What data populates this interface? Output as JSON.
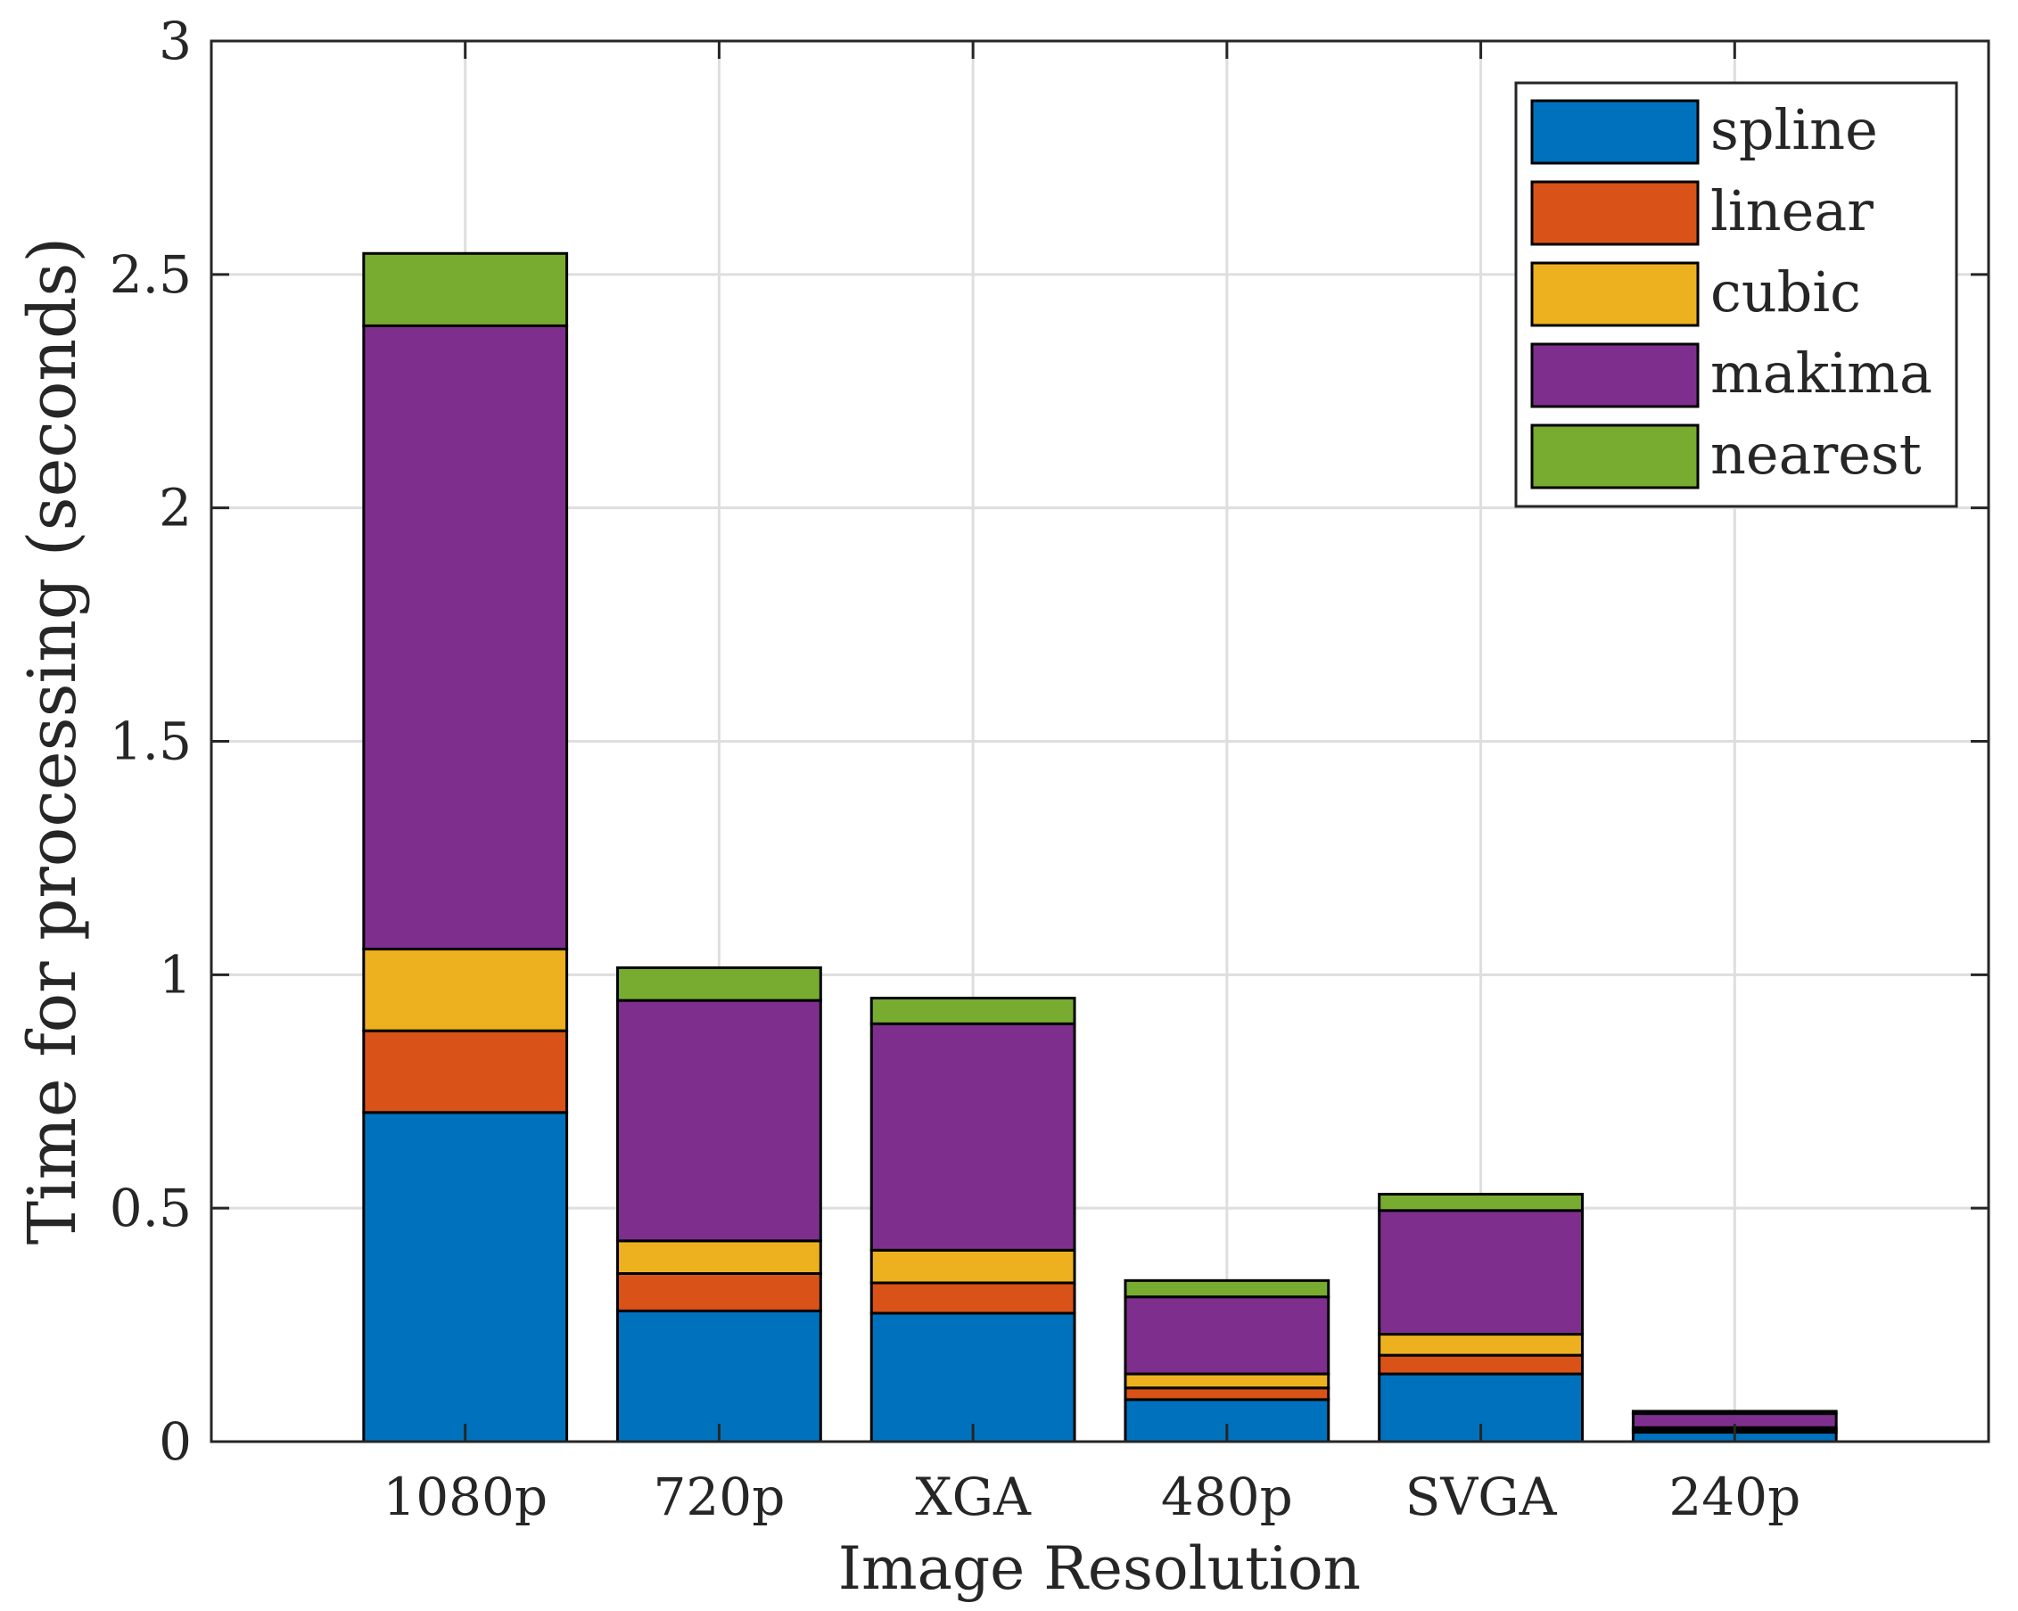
{
  "chart_data": {
    "type": "bar",
    "stacked": true,
    "title": "",
    "xlabel": "Image Resolution",
    "ylabel": "Time for processing (seconds)",
    "ylim": [
      0,
      3
    ],
    "yticks": [
      "0",
      "0.5",
      "1",
      "1.5",
      "2",
      "2.5",
      "3"
    ],
    "ytick_values": [
      0,
      0.5,
      1,
      1.5,
      2,
      2.5,
      3
    ],
    "grid": true,
    "legend_position": "top-right",
    "categories": [
      "1080p",
      "720p",
      "XGA",
      "480p",
      "SVGA",
      "240p"
    ],
    "series": [
      {
        "name": "spline",
        "color": "#0072BD",
        "values": [
          0.705,
          0.28,
          0.275,
          0.09,
          0.145,
          0.02
        ]
      },
      {
        "name": "linear",
        "color": "#D95319",
        "values": [
          0.175,
          0.08,
          0.065,
          0.025,
          0.04,
          0.005
        ]
      },
      {
        "name": "cubic",
        "color": "#EDB120",
        "values": [
          0.175,
          0.07,
          0.07,
          0.03,
          0.045,
          0.005
        ]
      },
      {
        "name": "makima",
        "color": "#7E2F8E",
        "values": [
          1.335,
          0.515,
          0.485,
          0.165,
          0.265,
          0.03
        ]
      },
      {
        "name": "nearest",
        "color": "#77AC30",
        "values": [
          0.155,
          0.07,
          0.055,
          0.035,
          0.035,
          0.005
        ]
      }
    ]
  }
}
